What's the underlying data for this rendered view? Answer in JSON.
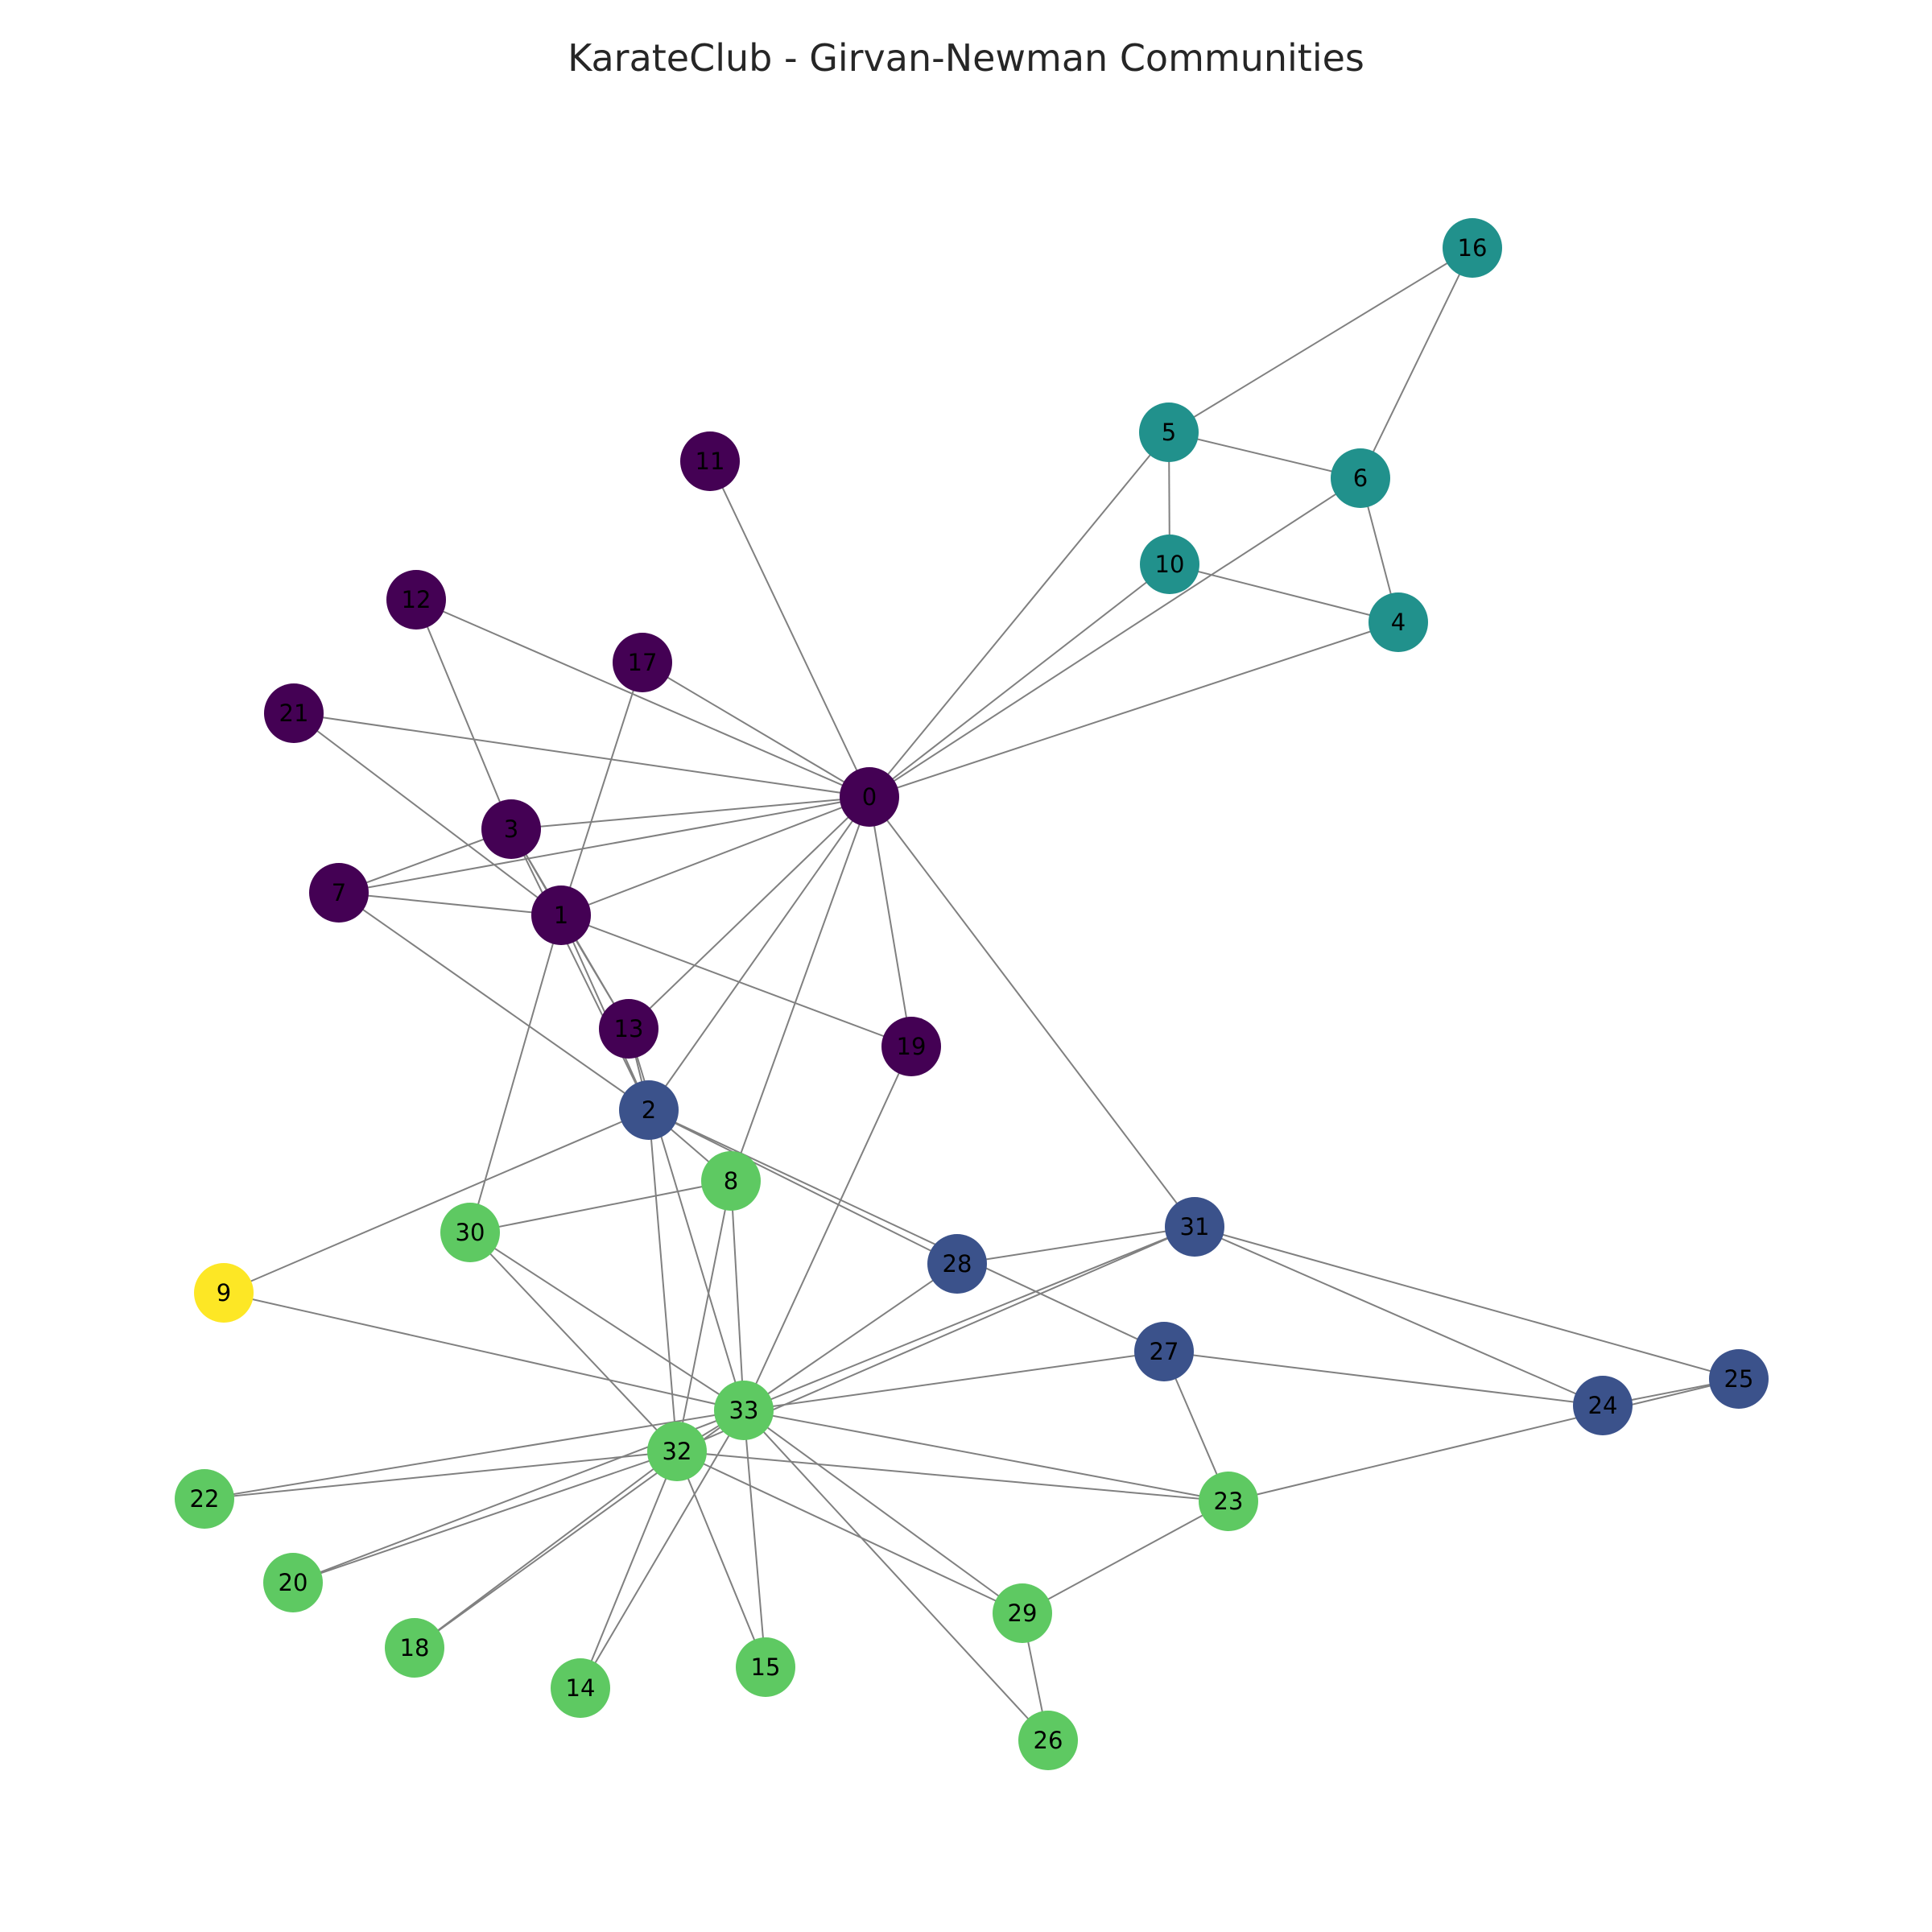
{
  "title": "KarateClub - Girvan-Newman Communities",
  "community_colors": {
    "purple": "#440154",
    "blue": "#3b528b",
    "teal": "#21918c",
    "green": "#5ec962",
    "yellow": "#fde725"
  },
  "nodes": [
    {
      "id": "0",
      "community": "purple"
    },
    {
      "id": "1",
      "community": "purple"
    },
    {
      "id": "3",
      "community": "purple"
    },
    {
      "id": "7",
      "community": "purple"
    },
    {
      "id": "11",
      "community": "purple"
    },
    {
      "id": "12",
      "community": "purple"
    },
    {
      "id": "13",
      "community": "purple"
    },
    {
      "id": "17",
      "community": "purple"
    },
    {
      "id": "19",
      "community": "purple"
    },
    {
      "id": "21",
      "community": "purple"
    },
    {
      "id": "4",
      "community": "teal"
    },
    {
      "id": "5",
      "community": "teal"
    },
    {
      "id": "6",
      "community": "teal"
    },
    {
      "id": "10",
      "community": "teal"
    },
    {
      "id": "16",
      "community": "teal"
    },
    {
      "id": "2",
      "community": "blue"
    },
    {
      "id": "24",
      "community": "blue"
    },
    {
      "id": "25",
      "community": "blue"
    },
    {
      "id": "27",
      "community": "blue"
    },
    {
      "id": "28",
      "community": "blue"
    },
    {
      "id": "31",
      "community": "blue"
    },
    {
      "id": "8",
      "community": "green"
    },
    {
      "id": "14",
      "community": "green"
    },
    {
      "id": "15",
      "community": "green"
    },
    {
      "id": "18",
      "community": "green"
    },
    {
      "id": "20",
      "community": "green"
    },
    {
      "id": "22",
      "community": "green"
    },
    {
      "id": "23",
      "community": "green"
    },
    {
      "id": "26",
      "community": "green"
    },
    {
      "id": "29",
      "community": "green"
    },
    {
      "id": "30",
      "community": "green"
    },
    {
      "id": "32",
      "community": "green"
    },
    {
      "id": "33",
      "community": "green"
    },
    {
      "id": "9",
      "community": "yellow"
    }
  ],
  "edges": [
    [
      "0",
      "1"
    ],
    [
      "0",
      "2"
    ],
    [
      "0",
      "3"
    ],
    [
      "0",
      "4"
    ],
    [
      "0",
      "5"
    ],
    [
      "0",
      "6"
    ],
    [
      "0",
      "7"
    ],
    [
      "0",
      "8"
    ],
    [
      "0",
      "10"
    ],
    [
      "0",
      "11"
    ],
    [
      "0",
      "12"
    ],
    [
      "0",
      "13"
    ],
    [
      "0",
      "17"
    ],
    [
      "0",
      "19"
    ],
    [
      "0",
      "21"
    ],
    [
      "0",
      "31"
    ],
    [
      "1",
      "2"
    ],
    [
      "1",
      "3"
    ],
    [
      "1",
      "7"
    ],
    [
      "1",
      "13"
    ],
    [
      "1",
      "17"
    ],
    [
      "1",
      "19"
    ],
    [
      "1",
      "21"
    ],
    [
      "1",
      "30"
    ],
    [
      "2",
      "3"
    ],
    [
      "2",
      "7"
    ],
    [
      "2",
      "8"
    ],
    [
      "2",
      "9"
    ],
    [
      "2",
      "13"
    ],
    [
      "2",
      "27"
    ],
    [
      "2",
      "28"
    ],
    [
      "2",
      "32"
    ],
    [
      "3",
      "7"
    ],
    [
      "3",
      "12"
    ],
    [
      "3",
      "13"
    ],
    [
      "4",
      "6"
    ],
    [
      "4",
      "10"
    ],
    [
      "5",
      "6"
    ],
    [
      "5",
      "10"
    ],
    [
      "5",
      "16"
    ],
    [
      "6",
      "16"
    ],
    [
      "8",
      "30"
    ],
    [
      "8",
      "32"
    ],
    [
      "8",
      "33"
    ],
    [
      "9",
      "33"
    ],
    [
      "13",
      "33"
    ],
    [
      "14",
      "32"
    ],
    [
      "14",
      "33"
    ],
    [
      "15",
      "32"
    ],
    [
      "15",
      "33"
    ],
    [
      "18",
      "32"
    ],
    [
      "18",
      "33"
    ],
    [
      "19",
      "33"
    ],
    [
      "20",
      "32"
    ],
    [
      "20",
      "33"
    ],
    [
      "22",
      "32"
    ],
    [
      "22",
      "33"
    ],
    [
      "23",
      "25"
    ],
    [
      "23",
      "27"
    ],
    [
      "23",
      "29"
    ],
    [
      "23",
      "32"
    ],
    [
      "23",
      "33"
    ],
    [
      "24",
      "25"
    ],
    [
      "24",
      "27"
    ],
    [
      "24",
      "31"
    ],
    [
      "25",
      "31"
    ],
    [
      "26",
      "29"
    ],
    [
      "26",
      "33"
    ],
    [
      "27",
      "33"
    ],
    [
      "28",
      "31"
    ],
    [
      "28",
      "33"
    ],
    [
      "29",
      "32"
    ],
    [
      "29",
      "33"
    ],
    [
      "30",
      "32"
    ],
    [
      "30",
      "33"
    ],
    [
      "31",
      "32"
    ],
    [
      "31",
      "33"
    ],
    [
      "32",
      "33"
    ]
  ]
}
